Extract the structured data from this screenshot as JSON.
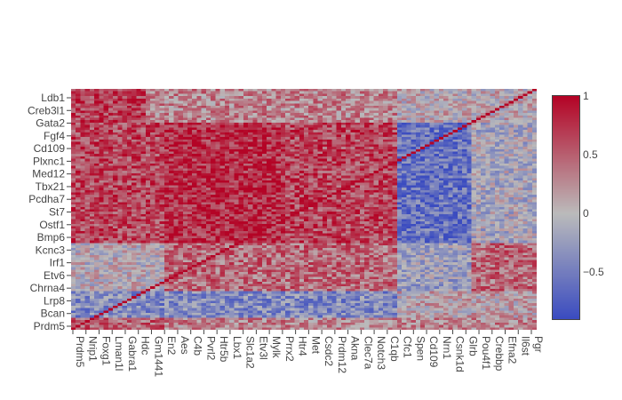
{
  "chart_data": {
    "type": "heatmap",
    "title": "",
    "xlabel": "",
    "ylabel": "",
    "n_genes": 100,
    "y_tick_labels": [
      "Ldb1",
      "Creb3l1",
      "Gata2",
      "Fgf4",
      "Cd109",
      "Plxnc1",
      "Med12",
      "Tbx21",
      "Pcdha7",
      "St7",
      "Ostf1",
      "Bmp6",
      "Kcnc3",
      "Irf1",
      "Etv6",
      "Chrna4",
      "Lrp8",
      "Bcan",
      "Prdm5"
    ],
    "x_tick_labels": [
      "Prdm5",
      "Nrip1",
      "Foxg1",
      "Lman1l",
      "Gabra1",
      "Hdc",
      "Gm1441",
      "En2",
      "Aes",
      "C4b",
      "Pvrl2",
      "Htr5b",
      "Lbx1",
      "Slc1a2",
      "Etv3l",
      "Mylk",
      "Prrx2",
      "Htr4",
      "Met",
      "Csdc2",
      "Prdm12",
      "Akna",
      "Clec7a",
      "Notch3",
      "C1qb",
      "Cfc1",
      "Spen",
      "Cd109",
      "Nrn1",
      "Csnk1d",
      "Glrb",
      "Pou4f1",
      "Crebbp",
      "Efna2",
      "Il6st",
      "Pgr"
    ],
    "colorscale": "coolwarm",
    "colors": {
      "low": "#3b4cc0",
      "mid": "#bbbbbb",
      "high": "#b40426"
    },
    "zmin": -0.9,
    "zmax": 1,
    "colorbar": {
      "tickvals": [
        1,
        0.5,
        0,
        -0.5
      ],
      "ticktext": [
        "1",
        "0.5",
        "0",
        "−0.5"
      ]
    },
    "diagonal_value": 1,
    "blocks": [
      {
        "rows": [
          0,
          4
        ],
        "cols": [
          0,
          99
        ],
        "mean": 0.3
      },
      {
        "rows": [
          0,
          4
        ],
        "cols": [
          0,
          19
        ],
        "mean": 0.5
      },
      {
        "rows": [
          5,
          15
        ],
        "cols": [
          0,
          99
        ],
        "mean": -0.4
      },
      {
        "rows": [
          5,
          15
        ],
        "cols": [
          70,
          99
        ],
        "mean": 0.1
      },
      {
        "rows": [
          16,
          35
        ],
        "cols": [
          20,
          99
        ],
        "mean": 0.45
      },
      {
        "rows": [
          16,
          35
        ],
        "cols": [
          70,
          85
        ],
        "mean": -0.2
      },
      {
        "rows": [
          36,
          85
        ],
        "cols": [
          0,
          69
        ],
        "mean": 0.65
      },
      {
        "rows": [
          36,
          85
        ],
        "cols": [
          20,
          45
        ],
        "mean": 0.8
      },
      {
        "rows": [
          36,
          85
        ],
        "cols": [
          70,
          85
        ],
        "mean": -0.6
      },
      {
        "rows": [
          36,
          85
        ],
        "cols": [
          86,
          99
        ],
        "mean": -0.1
      },
      {
        "rows": [
          86,
          99
        ],
        "cols": [
          0,
          15
        ],
        "mean": 0.7
      },
      {
        "rows": [
          86,
          99
        ],
        "cols": [
          16,
          69
        ],
        "mean": 0.3
      },
      {
        "rows": [
          86,
          99
        ],
        "cols": [
          70,
          99
        ],
        "mean": 0.05
      }
    ]
  }
}
